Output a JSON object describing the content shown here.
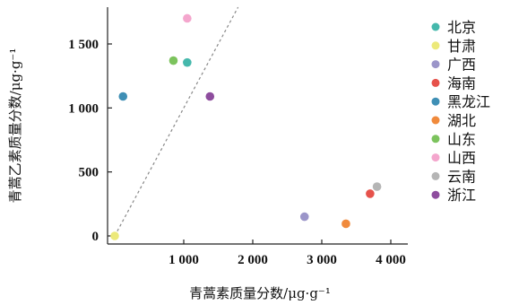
{
  "chart_data": {
    "type": "scatter",
    "title": "",
    "xlabel": "青蒿素质量分数/μg·g⁻¹",
    "ylabel": "青蒿乙素质量分数/μg·g⁻¹",
    "xlim": [
      -100,
      4200
    ],
    "ylim": [
      -50,
      1760
    ],
    "x_ticks": [
      1000,
      2000,
      3000,
      4000
    ],
    "x_tick_labels": [
      "1 000",
      "2 000",
      "3 000",
      "4 000"
    ],
    "y_ticks": [
      0,
      500,
      1000,
      1500
    ],
    "y_tick_labels": [
      "0",
      "500",
      "1 000",
      "1 500"
    ],
    "reference_line": "y = x",
    "grid": false,
    "legend_position": "right",
    "series": [
      {
        "name": "北京",
        "color": "#45b8ac",
        "x": 1050,
        "y": 1355
      },
      {
        "name": "甘肃",
        "color": "#ece97a",
        "x": 0,
        "y": 0
      },
      {
        "name": "广西",
        "color": "#9b95c9",
        "x": 2750,
        "y": 150
      },
      {
        "name": "海南",
        "color": "#e6524b",
        "x": 3700,
        "y": 330
      },
      {
        "name": "黑龙江",
        "color": "#3f8fb5",
        "x": 120,
        "y": 1090
      },
      {
        "name": "湖北",
        "color": "#f08a3c",
        "x": 3350,
        "y": 95
      },
      {
        "name": "山东",
        "color": "#7cc35d",
        "x": 850,
        "y": 1370
      },
      {
        "name": "山西",
        "color": "#f4a6cd",
        "x": 1050,
        "y": 1700
      },
      {
        "name": "云南",
        "color": "#b5b5b5",
        "x": 3800,
        "y": 385
      },
      {
        "name": "浙江",
        "color": "#8e4d9e",
        "x": 1380,
        "y": 1090
      }
    ]
  }
}
